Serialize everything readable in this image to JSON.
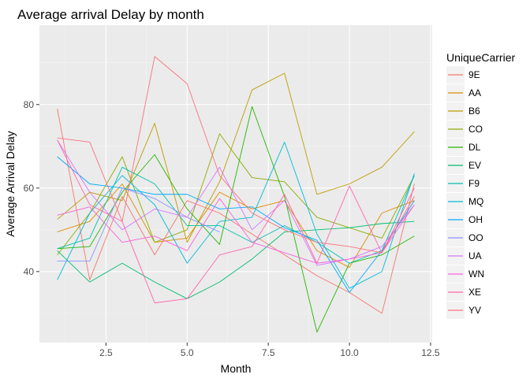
{
  "chart_data": {
    "type": "line",
    "title": "Average arrival Delay by month",
    "xlabel": "Month",
    "ylabel": "Average Arrival Delay",
    "xlim": [
      0.45,
      12.55
    ],
    "ylim": [
      23,
      99
    ],
    "x_ticks": [
      2.5,
      5.0,
      7.5,
      10.0,
      12.5
    ],
    "x_tick_labels": [
      "2.5",
      "5.0",
      "7.5",
      "10.0",
      "12.5"
    ],
    "y_ticks": [
      40,
      60,
      80
    ],
    "y_tick_labels": [
      "40",
      "60",
      "80"
    ],
    "grid": true,
    "legend": {
      "title": "UniqueCarrier",
      "position": "right"
    },
    "series": [
      {
        "name": "9E",
        "color": "#F8766D",
        "x": [
          1,
          2,
          3,
          4,
          5,
          6,
          7,
          8,
          9,
          10,
          11,
          12
        ],
        "y": [
          79,
          38,
          58,
          44,
          57,
          54,
          49,
          44,
          39,
          35,
          30,
          61
        ]
      },
      {
        "name": "AA",
        "color": "#E18A00",
        "x": [
          1,
          2,
          3,
          4,
          5,
          6,
          7,
          8,
          9,
          10,
          11,
          12
        ],
        "y": [
          49.5,
          52,
          61,
          47,
          48,
          59,
          55,
          57,
          45,
          41,
          54,
          57
        ]
      },
      {
        "name": "B6",
        "color": "#BE9C00",
        "x": [
          1,
          2,
          3,
          4,
          5,
          6,
          7,
          8,
          9,
          10,
          11,
          12
        ],
        "y": [
          52.5,
          59,
          57,
          75.5,
          47,
          61.5,
          83.5,
          87.5,
          58.5,
          61,
          65,
          73.5
        ]
      },
      {
        "name": "CO",
        "color": "#8CAB00",
        "x": [
          1,
          2,
          3,
          4,
          5,
          6,
          7,
          8,
          9,
          10,
          11,
          12
        ],
        "y": [
          44,
          54,
          67.5,
          47,
          50,
          73,
          62.5,
          61.5,
          53,
          50.5,
          48,
          63
        ]
      },
      {
        "name": "DL",
        "color": "#24B700",
        "x": [
          1,
          2,
          3,
          4,
          5,
          6,
          7,
          8,
          9,
          10,
          11,
          12
        ],
        "y": [
          45.5,
          46,
          59,
          68,
          55,
          46.5,
          79.5,
          58,
          25.5,
          42,
          44,
          48.5
        ]
      },
      {
        "name": "EV",
        "color": "#00BE70",
        "x": [
          1,
          2,
          3,
          4,
          5,
          6,
          7,
          8,
          9,
          10,
          11,
          12
        ],
        "y": [
          45,
          37.5,
          42,
          37.5,
          33.5,
          37.5,
          43,
          49.5,
          50,
          50.5,
          51.5,
          52
        ]
      },
      {
        "name": "F9",
        "color": "#00C1AB",
        "x": [
          1,
          2,
          3,
          4,
          5,
          6,
          7,
          8,
          9,
          10,
          11,
          12
        ],
        "y": [
          45.5,
          48,
          65,
          61,
          51,
          51,
          47,
          51,
          47,
          42,
          45,
          63
        ]
      },
      {
        "name": "MQ",
        "color": "#00BBDA",
        "x": [
          1,
          2,
          3,
          4,
          5,
          6,
          7,
          8,
          9,
          10,
          11,
          12
        ],
        "y": [
          38,
          54,
          63,
          56,
          42,
          52,
          53,
          71,
          49,
          36,
          40,
          63.5
        ]
      },
      {
        "name": "OH",
        "color": "#00ACFC",
        "x": [
          1,
          2,
          3,
          4,
          5,
          6,
          7,
          8,
          9,
          10,
          11,
          12
        ],
        "y": [
          67.5,
          61,
          60,
          58.5,
          58.5,
          55,
          55.5,
          50.5,
          47.5,
          35,
          45,
          57
        ]
      },
      {
        "name": "OO",
        "color": "#8B93FF",
        "x": [
          1,
          2,
          3,
          4,
          5,
          6
        ],
        "y": [
          42.5,
          42.5,
          60,
          57.5,
          53,
          49.5
        ]
      },
      {
        "name": "UA",
        "color": "#D575FE",
        "x": [
          1,
          2,
          3,
          4,
          5,
          6,
          7,
          8,
          9,
          10,
          11,
          12
        ],
        "y": [
          71.5,
          59,
          50,
          55,
          53,
          65,
          50,
          57,
          41.5,
          43,
          46,
          56
        ]
      },
      {
        "name": "WN",
        "color": "#F962DD",
        "x": [
          1,
          2,
          3,
          4,
          5,
          6,
          7,
          8,
          9,
          10,
          11,
          12
        ],
        "y": [
          53.5,
          55.5,
          47,
          48.5,
          45,
          57.5,
          47,
          44.5,
          42,
          43,
          44.5,
          56
        ]
      },
      {
        "name": "XE",
        "color": "#FF65AC",
        "x": [
          1,
          2,
          3,
          4,
          5,
          6,
          7,
          8,
          9,
          10,
          11,
          12
        ],
        "y": [
          71.5,
          56,
          52,
          32.5,
          33.5,
          44,
          46,
          58.5,
          42,
          60.5,
          44.5,
          60
        ]
      },
      {
        "name": "YV",
        "color": "#FC717F",
        "x": [
          1,
          2,
          3,
          4,
          5,
          6,
          7,
          8,
          9,
          10,
          11,
          12
        ],
        "y": [
          72,
          71,
          52,
          91.5,
          85,
          63,
          54,
          50,
          47,
          46,
          44.5,
          58
        ]
      }
    ]
  }
}
